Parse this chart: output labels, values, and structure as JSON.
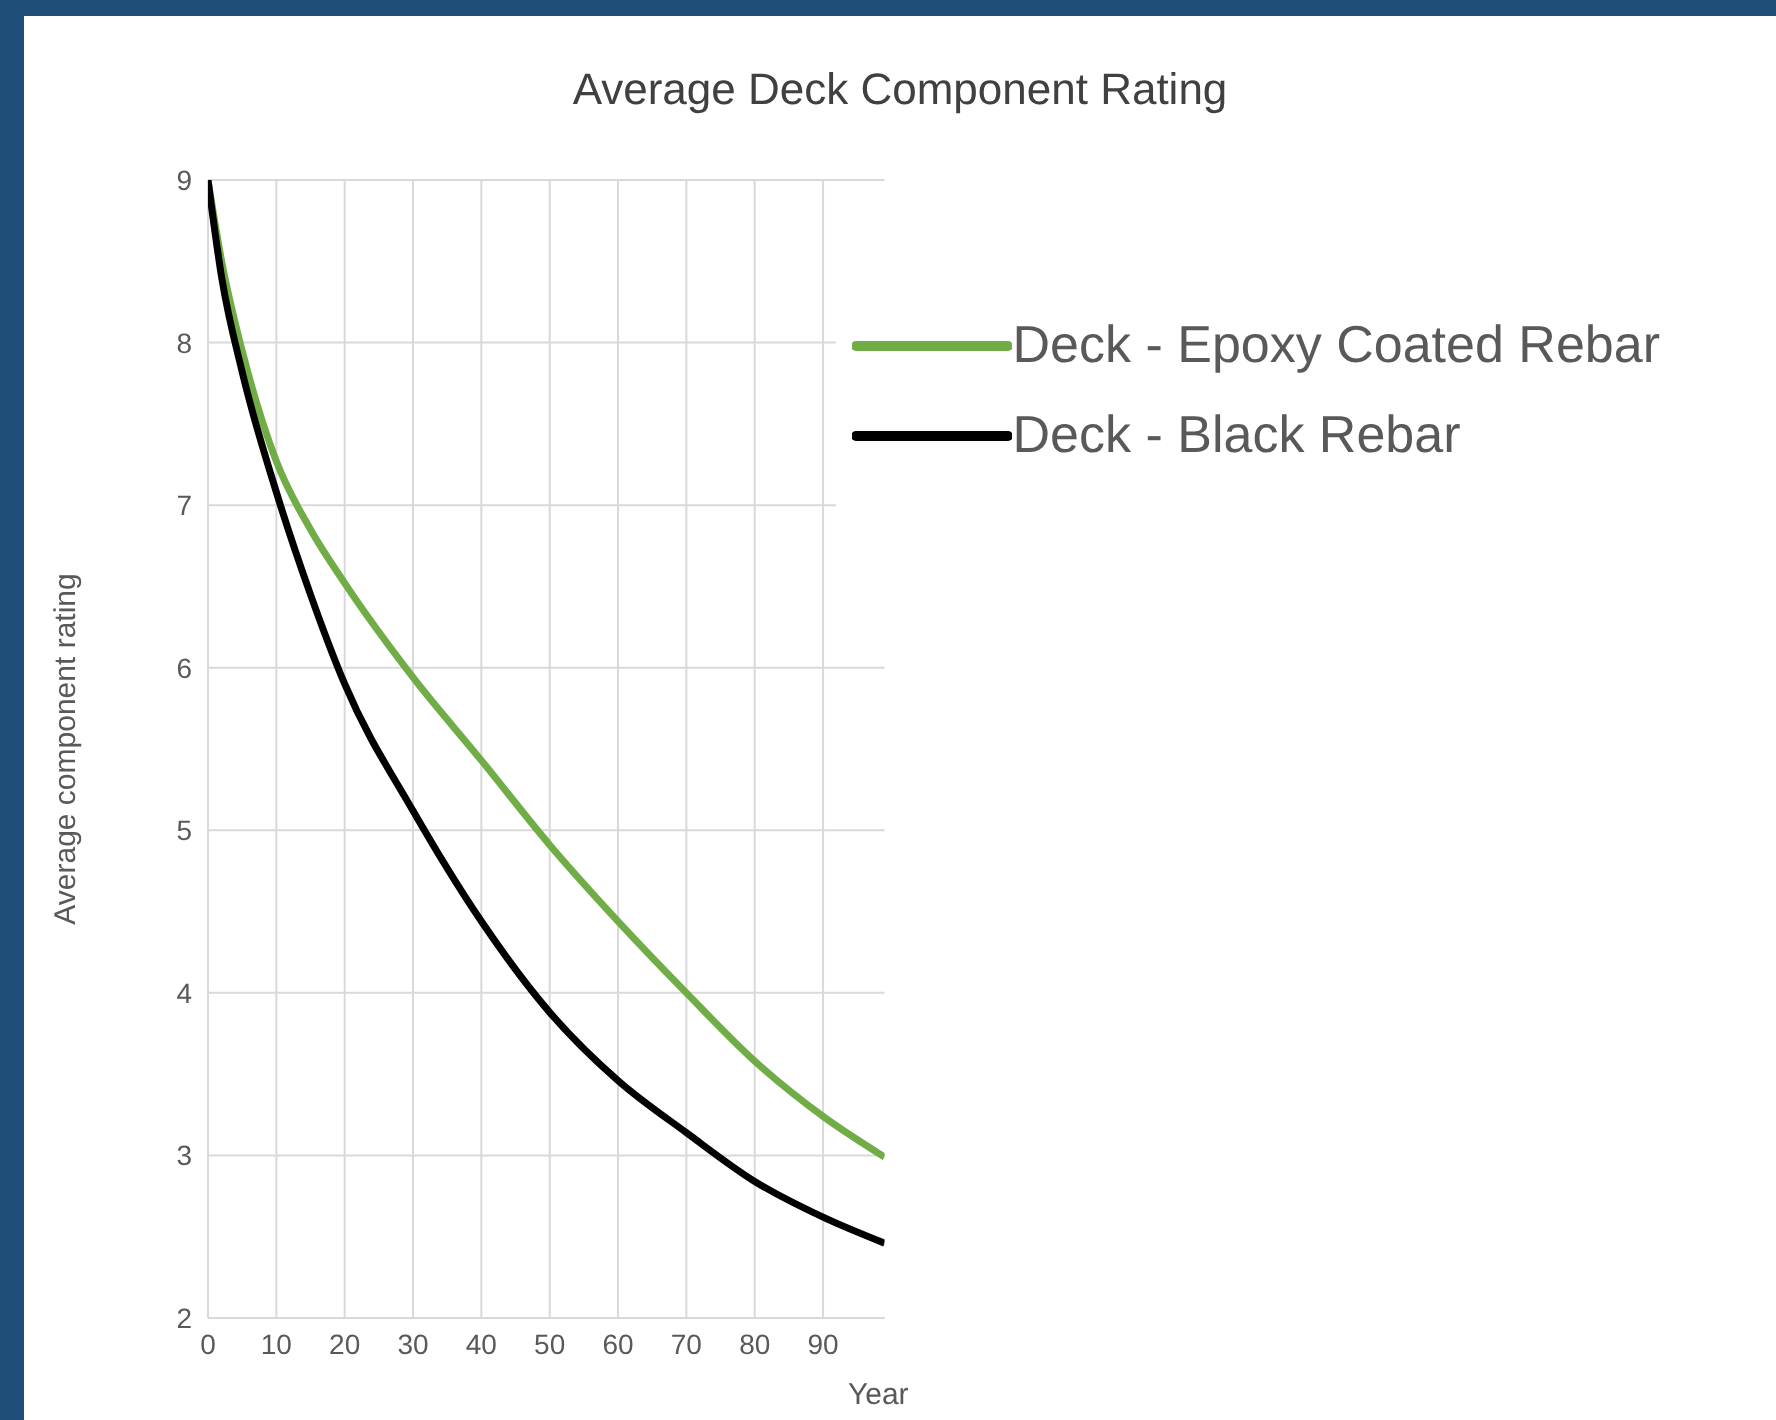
{
  "chart_data": {
    "type": "line",
    "title": "Average Deck Component Rating",
    "xlabel": "Year",
    "ylabel": "Average component rating",
    "x": [
      0,
      2,
      5,
      10,
      15,
      20,
      30,
      40,
      50,
      60,
      70,
      80,
      90,
      99
    ],
    "series": [
      {
        "name": "Deck - Epoxy Coated Rebar",
        "color": "#70ad47",
        "values": [
          9,
          8.5,
          7.95,
          7.27,
          6.85,
          6.52,
          5.94,
          5.43,
          4.91,
          4.44,
          4.0,
          3.58,
          3.24,
          2.99
        ]
      },
      {
        "name": "Deck - Black Rebar",
        "color": "#000000",
        "values": [
          9,
          8.4,
          7.82,
          7.08,
          6.45,
          5.9,
          5.12,
          4.44,
          3.88,
          3.46,
          3.14,
          2.84,
          2.62,
          2.46
        ]
      }
    ],
    "xlim": [
      0,
      99
    ],
    "xticks": [
      0,
      10,
      20,
      30,
      40,
      50,
      60,
      70,
      80,
      90
    ],
    "ylim": [
      2,
      9
    ],
    "yticks": [
      2,
      3,
      4,
      5,
      6,
      7,
      8,
      9
    ],
    "grid": true,
    "legend": "top right",
    "marker": "none",
    "line_style": "solid"
  }
}
